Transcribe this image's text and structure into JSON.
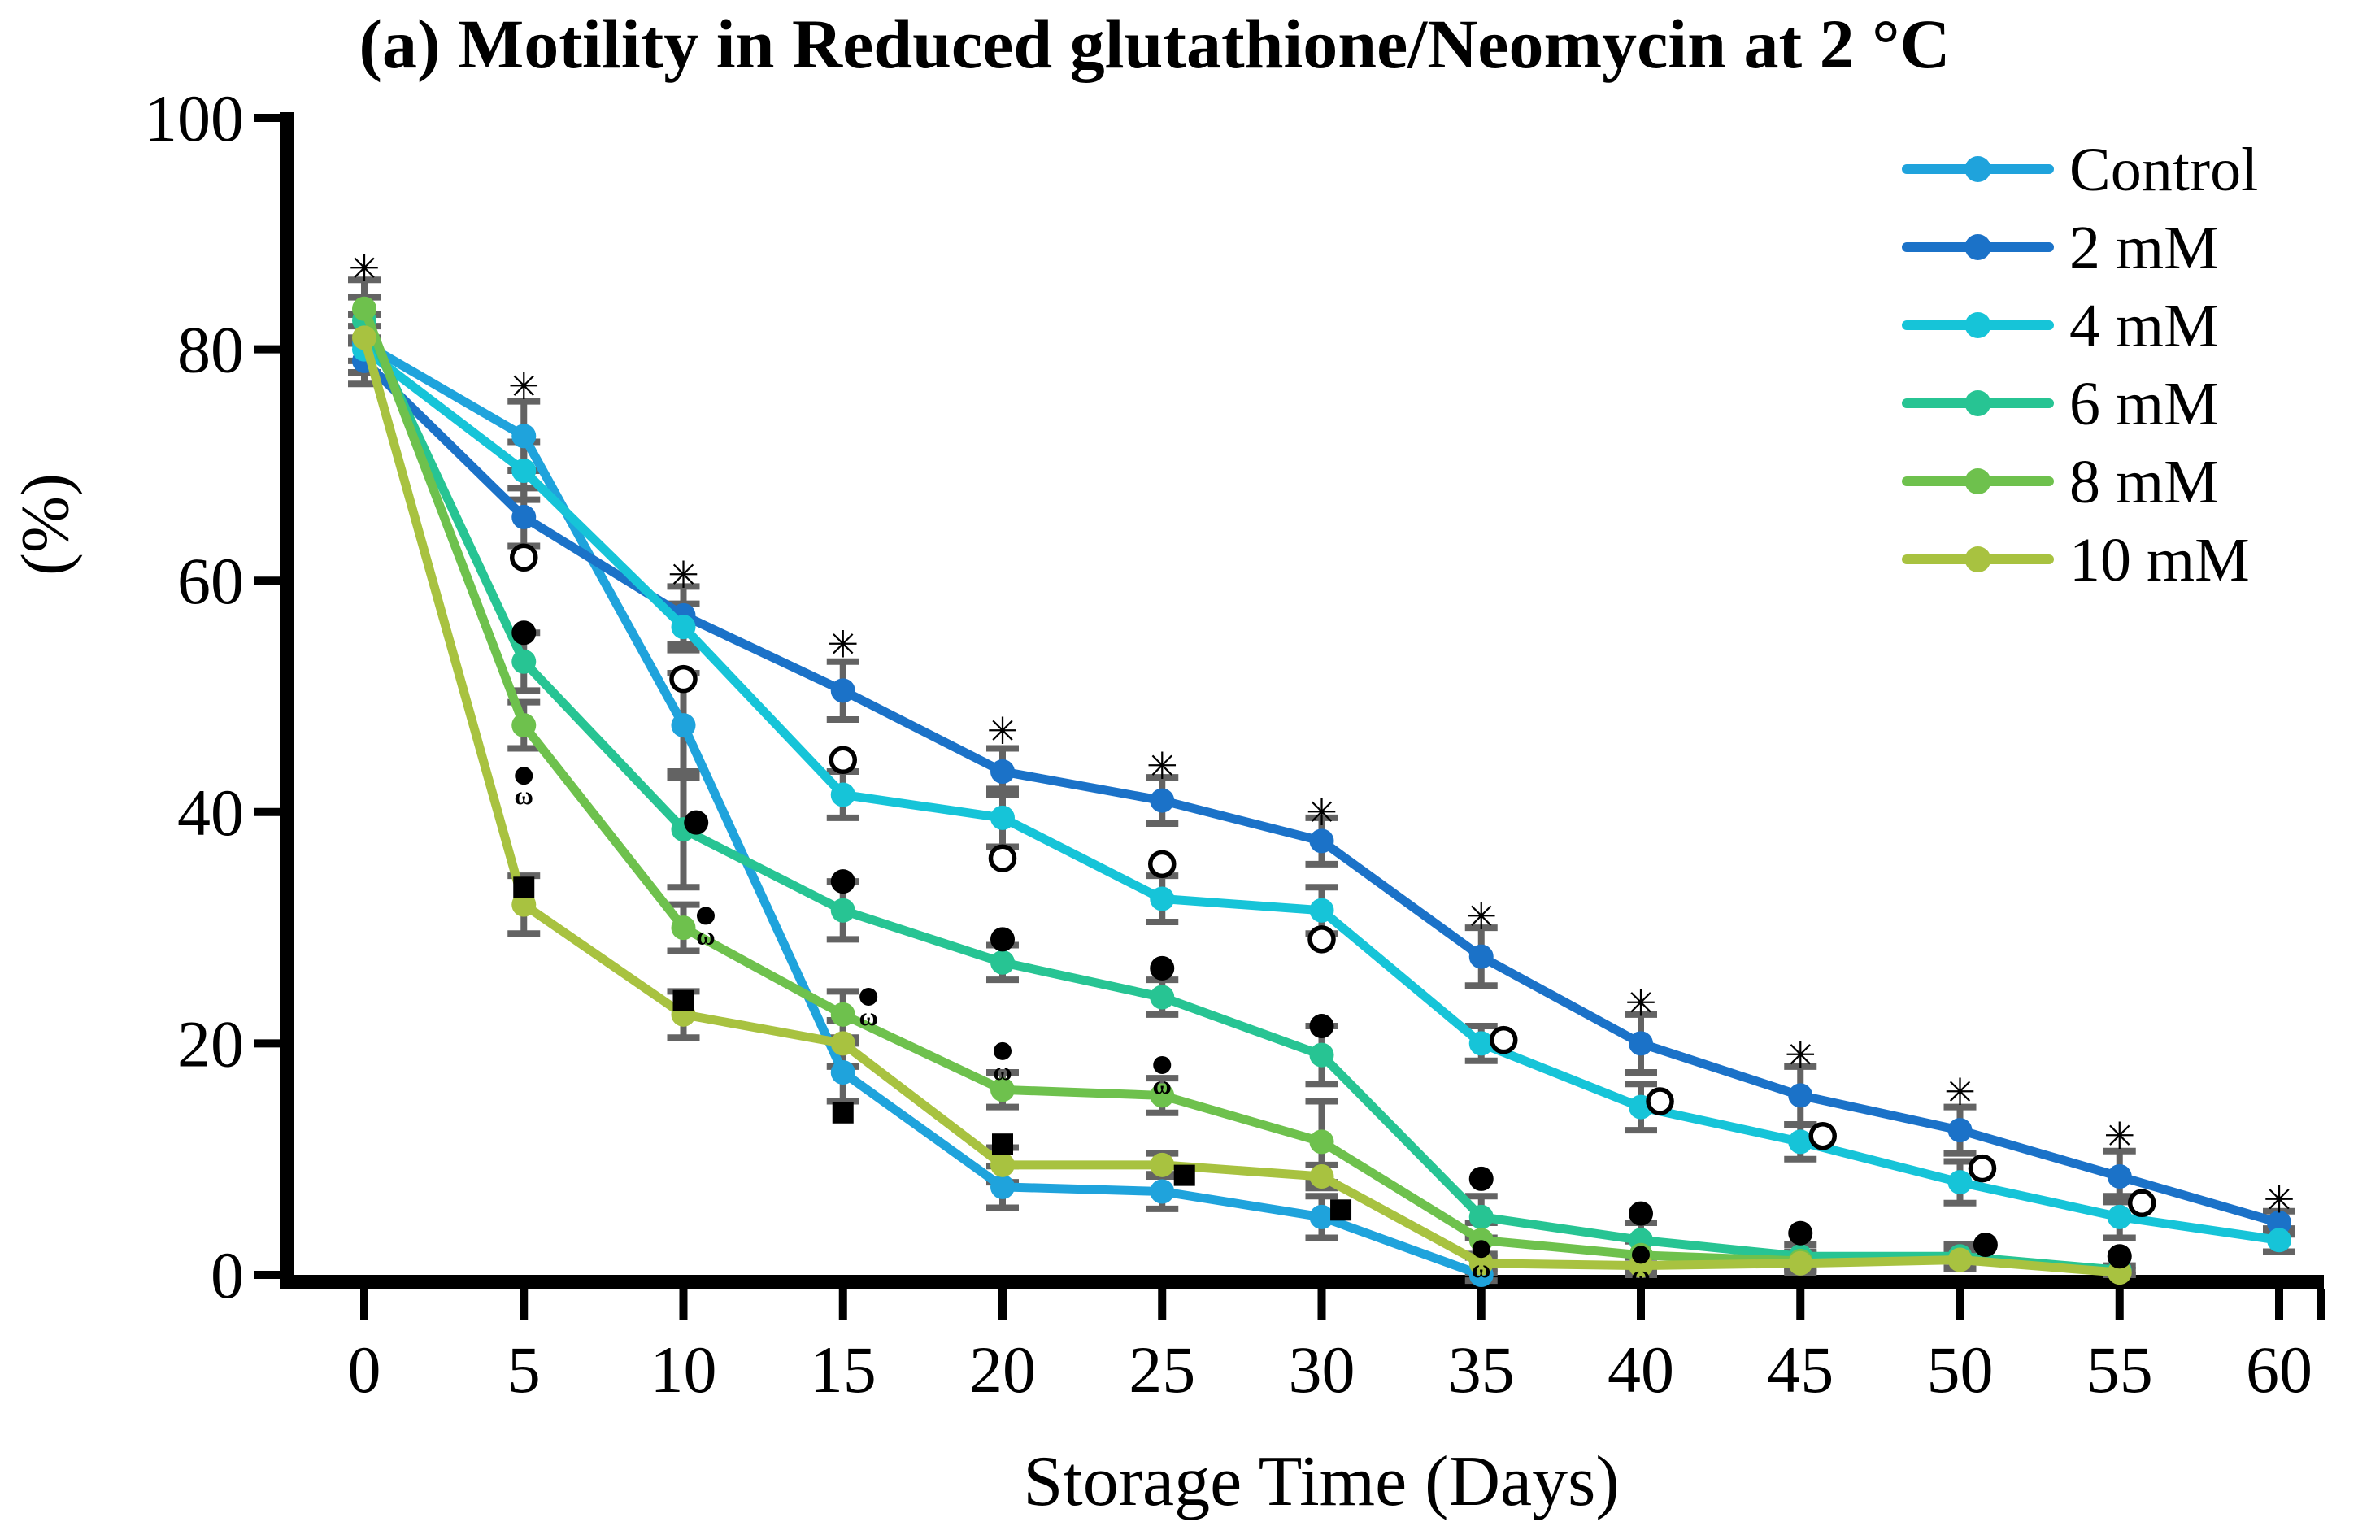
{
  "title": "(a) Motility in Reduced glutathione/Neomycin at 2 °C",
  "axes": {
    "y_label": "(%)",
    "x_label": "Storage Time (Days)"
  },
  "chart_data": {
    "type": "line",
    "title": "(a) Motility in Reduced glutathione/Neomycin at 2 °C",
    "xlabel": "Storage Time (Days)",
    "ylabel": "(%)",
    "xlim": [
      0,
      60
    ],
    "ylim": [
      0,
      100
    ],
    "x_ticks": [
      0,
      5,
      10,
      15,
      20,
      25,
      30,
      35,
      40,
      45,
      50,
      55,
      60
    ],
    "y_ticks": [
      0,
      20,
      40,
      60,
      80,
      100
    ],
    "grid": false,
    "legend_position": "top-right",
    "axis_color": "#000000",
    "error_bar_color": "#636363",
    "series": [
      {
        "name": "Control",
        "color": "#1FA3DC",
        "x": [
          0,
          5,
          10,
          15,
          20,
          25,
          30,
          35
        ],
        "y": [
          80.5,
          72.5,
          47.5,
          17.5,
          7.6,
          7.2,
          5.0,
          0.0
        ],
        "err": [
          2.5,
          3.0,
          4.5,
          2.5,
          1.8,
          1.5,
          1.8,
          0.5
        ]
      },
      {
        "name": "2 mM",
        "color": "#1B72C8",
        "x": [
          0,
          5,
          10,
          15,
          20,
          25,
          30,
          35,
          40,
          45,
          50,
          55,
          60
        ],
        "y": [
          79.0,
          65.5,
          57.0,
          50.5,
          43.5,
          41.0,
          37.5,
          27.5,
          20.0,
          15.5,
          12.5,
          8.5,
          4.5
        ],
        "err": [
          2.0,
          2.5,
          2.5,
          2.5,
          2.0,
          2.0,
          2.0,
          2.5,
          2.5,
          2.5,
          2.0,
          2.2,
          1.0
        ]
      },
      {
        "name": "4 mM",
        "color": "#16C4D8",
        "x": [
          0,
          5,
          10,
          15,
          20,
          25,
          30,
          35,
          40,
          45,
          50,
          55,
          60
        ],
        "y": [
          80.0,
          69.5,
          56.0,
          41.5,
          39.5,
          32.5,
          31.5,
          20.0,
          14.5,
          11.5,
          8.0,
          5.0,
          3.0
        ],
        "err": [
          2.0,
          2.5,
          2.0,
          2.0,
          2.5,
          2.0,
          2.0,
          1.5,
          2.0,
          1.5,
          1.8,
          1.8,
          1.0
        ]
      },
      {
        "name": "6 mM",
        "color": "#27C493",
        "x": [
          0,
          5,
          10,
          15,
          20,
          25,
          30,
          35,
          40,
          45,
          50,
          55
        ],
        "y": [
          82.5,
          53.0,
          38.5,
          31.5,
          27.0,
          24.0,
          19.0,
          5.0,
          3.0,
          1.6,
          1.6,
          0.4
        ],
        "err": [
          2.0,
          2.5,
          5.0,
          2.5,
          1.5,
          1.5,
          2.5,
          1.8,
          1.5,
          1.0,
          1.0,
          0.4
        ]
      },
      {
        "name": "8 mM",
        "color": "#6EC14D",
        "x": [
          0,
          5,
          10,
          15,
          20,
          25,
          30,
          35,
          40,
          45
        ],
        "y": [
          83.5,
          47.5,
          30.0,
          22.5,
          16.0,
          15.5,
          11.5,
          3.0,
          1.7,
          1.2
        ],
        "err": [
          2.5,
          2.0,
          2.0,
          2.0,
          1.5,
          1.5,
          3.5,
          1.5,
          1.2,
          0.8
        ]
      },
      {
        "name": "10 mM",
        "color": "#A8C240",
        "x": [
          0,
          5,
          10,
          15,
          20,
          25,
          30,
          35,
          40,
          45,
          50,
          55
        ],
        "y": [
          81.0,
          32.0,
          22.5,
          20.0,
          9.5,
          9.5,
          8.5,
          1.0,
          0.8,
          1.0,
          1.3,
          0.2
        ],
        "err": [
          2.0,
          2.5,
          2.0,
          2.0,
          1.5,
          1.0,
          1.0,
          0.8,
          0.8,
          0.8,
          0.8,
          0.2
        ]
      }
    ],
    "significance_markers": [
      {
        "symbol": "eight-spoked-asterisk",
        "glyph": "✳",
        "points": [
          [
            0,
            87
          ],
          [
            5,
            76.8
          ],
          [
            10,
            60.5
          ],
          [
            15,
            54.5
          ],
          [
            20,
            47
          ],
          [
            25,
            44
          ],
          [
            30,
            40
          ],
          [
            35,
            31
          ],
          [
            40,
            23.5
          ],
          [
            45,
            19
          ],
          [
            50,
            15.8
          ],
          [
            55,
            12
          ],
          [
            60,
            6.5
          ]
        ]
      },
      {
        "symbol": "open-circle",
        "glyph": "○",
        "points": [
          [
            5,
            62
          ],
          [
            10,
            51.5
          ],
          [
            15,
            44.5
          ],
          [
            20,
            36
          ],
          [
            25,
            35.5
          ],
          [
            30,
            29
          ],
          [
            35.7,
            20.3
          ],
          [
            40.6,
            15
          ],
          [
            45.7,
            12
          ],
          [
            50.7,
            9.2
          ],
          [
            55.7,
            6.2
          ]
        ]
      },
      {
        "symbol": "filled-circle",
        "glyph": "●",
        "points": [
          [
            5,
            55.5
          ],
          [
            10.4,
            39.1
          ],
          [
            15,
            34
          ],
          [
            20,
            29
          ],
          [
            25,
            26.5
          ],
          [
            30,
            21.5
          ],
          [
            35,
            8.3
          ],
          [
            40,
            5.3
          ],
          [
            45,
            3.6
          ],
          [
            50.8,
            2.6
          ],
          [
            55,
            1.6
          ]
        ]
      },
      {
        "symbol": "dot-omega",
        "glyph": "●ω",
        "points": [
          [
            5,
            42.5
          ],
          [
            10.7,
            30.4
          ],
          [
            15.8,
            23.4
          ],
          [
            20,
            18.7
          ],
          [
            25,
            17.5
          ],
          [
            35,
            1.6
          ],
          [
            40,
            1.1
          ]
        ]
      },
      {
        "symbol": "filled-square",
        "glyph": "■",
        "points": [
          [
            5,
            33.5
          ],
          [
            10,
            23.7
          ],
          [
            15,
            14
          ],
          [
            20,
            11.3
          ],
          [
            25.7,
            8.6
          ],
          [
            30.6,
            5.6
          ]
        ]
      }
    ]
  }
}
